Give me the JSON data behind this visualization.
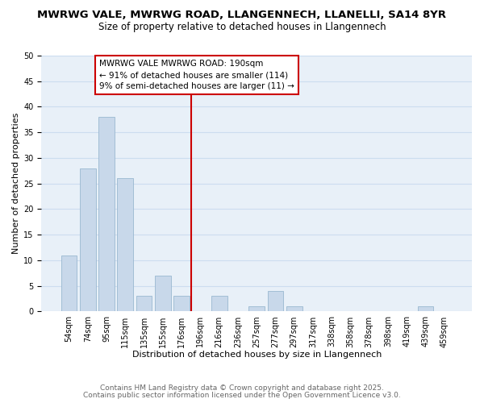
{
  "title": "MWRWG VALE, MWRWG ROAD, LLANGENNECH, LLANELLI, SA14 8YR",
  "subtitle": "Size of property relative to detached houses in Llangennech",
  "xlabel": "Distribution of detached houses by size in Llangennech",
  "ylabel": "Number of detached properties",
  "bins": [
    "54sqm",
    "74sqm",
    "95sqm",
    "115sqm",
    "135sqm",
    "155sqm",
    "176sqm",
    "196sqm",
    "216sqm",
    "236sqm",
    "257sqm",
    "277sqm",
    "297sqm",
    "317sqm",
    "338sqm",
    "358sqm",
    "378sqm",
    "398sqm",
    "419sqm",
    "439sqm",
    "459sqm"
  ],
  "values": [
    11,
    28,
    38,
    26,
    3,
    7,
    3,
    0,
    3,
    0,
    1,
    4,
    1,
    0,
    0,
    0,
    0,
    0,
    0,
    1,
    0
  ],
  "bar_color": "#c8d8ea",
  "bar_edge_color": "#9ab8d0",
  "grid_color": "#ccddf0",
  "bg_color": "#e8f0f8",
  "vline_color": "#cc0000",
  "annotation_title": "MWRWG VALE MWRWG ROAD: 190sqm",
  "annotation_line1": "← 91% of detached houses are smaller (114)",
  "annotation_line2": "9% of semi-detached houses are larger (11) →",
  "annotation_box_color": "#ffffff",
  "annotation_border_color": "#cc0000",
  "ylim": [
    0,
    50
  ],
  "yticks": [
    0,
    5,
    10,
    15,
    20,
    25,
    30,
    35,
    40,
    45,
    50
  ],
  "footer1": "Contains HM Land Registry data © Crown copyright and database right 2025.",
  "footer2": "Contains public sector information licensed under the Open Government Licence v3.0.",
  "title_fontsize": 9.5,
  "subtitle_fontsize": 8.5,
  "axis_label_fontsize": 8,
  "tick_fontsize": 7,
  "annotation_fontsize": 7.5,
  "footer_fontsize": 6.5
}
